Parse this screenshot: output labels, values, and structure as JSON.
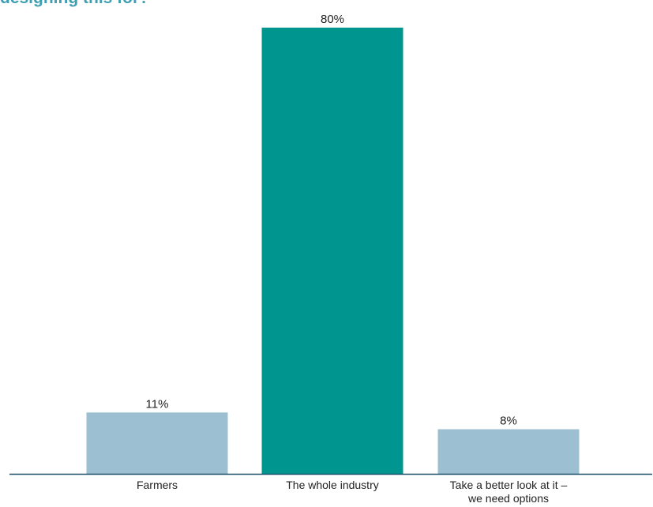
{
  "chart_data": {
    "type": "bar",
    "title": "designing this for?",
    "categories": [
      "Farmers",
      "The whole industry",
      "Take a better look at it – we need options"
    ],
    "category_lines": [
      [
        "Farmers"
      ],
      [
        "The whole industry"
      ],
      [
        "Take a better look at it –",
        "we need options"
      ]
    ],
    "values": [
      11,
      80,
      8
    ],
    "value_labels": [
      "11%",
      "80%",
      "8%"
    ],
    "colors": [
      "#9dbfd2",
      "#00968f",
      "#9dbfd2"
    ],
    "axis_color": "#1c4f68",
    "ylim": [
      0,
      80
    ],
    "grid": false,
    "xlabel": "",
    "ylabel": ""
  }
}
